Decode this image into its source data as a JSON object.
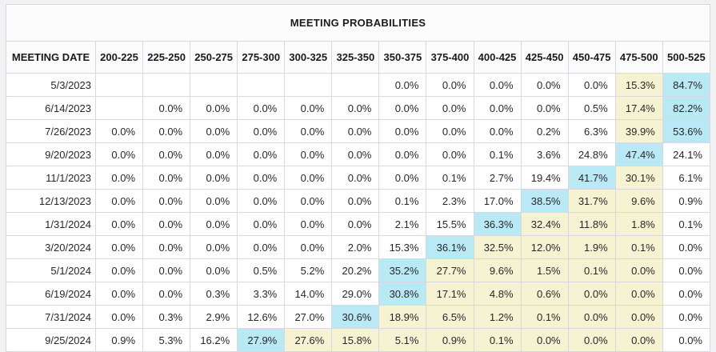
{
  "title": "MEETING PROBABILITIES",
  "colors": {
    "highlight_blue": "#b9e9f5",
    "highlight_yellow": "#f6f3d3",
    "page_background": "#f1f1f2",
    "table_border": "#c1c1c9",
    "cell_border": "#d8d8de",
    "text": "#272727"
  },
  "chart_data": {
    "type": "table",
    "title": "MEETING PROBABILITIES",
    "columns": [
      "MEETING DATE",
      "200-225",
      "225-250",
      "250-275",
      "275-300",
      "300-325",
      "325-350",
      "350-375",
      "375-400",
      "400-425",
      "425-450",
      "450-475",
      "475-500",
      "500-525"
    ],
    "highlight_legend": {
      "B": "highest-probability cell (light blue)",
      "Y": "band between most likely range and 475-500 (pale yellow)"
    },
    "rows": [
      {
        "date": "5/3/2023",
        "values": [
          "",
          "",
          "",
          "",
          "",
          "",
          "0.0%",
          "0.0%",
          "0.0%",
          "0.0%",
          "0.0%",
          "15.3%",
          "84.7%"
        ],
        "highlights": [
          "",
          "",
          "",
          "",
          "",
          "",
          "",
          "",
          "",
          "",
          "",
          "Y",
          "B"
        ]
      },
      {
        "date": "6/14/2023",
        "values": [
          "",
          "0.0%",
          "0.0%",
          "0.0%",
          "0.0%",
          "0.0%",
          "0.0%",
          "0.0%",
          "0.0%",
          "0.0%",
          "0.5%",
          "17.4%",
          "82.2%"
        ],
        "highlights": [
          "",
          "",
          "",
          "",
          "",
          "",
          "",
          "",
          "",
          "",
          "",
          "Y",
          "B"
        ]
      },
      {
        "date": "7/26/2023",
        "values": [
          "0.0%",
          "0.0%",
          "0.0%",
          "0.0%",
          "0.0%",
          "0.0%",
          "0.0%",
          "0.0%",
          "0.0%",
          "0.2%",
          "6.3%",
          "39.9%",
          "53.6%"
        ],
        "highlights": [
          "",
          "",
          "",
          "",
          "",
          "",
          "",
          "",
          "",
          "",
          "",
          "Y",
          "B"
        ]
      },
      {
        "date": "9/20/2023",
        "values": [
          "0.0%",
          "0.0%",
          "0.0%",
          "0.0%",
          "0.0%",
          "0.0%",
          "0.0%",
          "0.0%",
          "0.1%",
          "3.6%",
          "24.8%",
          "47.4%",
          "24.1%"
        ],
        "highlights": [
          "",
          "",
          "",
          "",
          "",
          "",
          "",
          "",
          "",
          "",
          "",
          "B",
          ""
        ]
      },
      {
        "date": "11/1/2023",
        "values": [
          "0.0%",
          "0.0%",
          "0.0%",
          "0.0%",
          "0.0%",
          "0.0%",
          "0.0%",
          "0.1%",
          "2.7%",
          "19.4%",
          "41.7%",
          "30.1%",
          "6.1%"
        ],
        "highlights": [
          "",
          "",
          "",
          "",
          "",
          "",
          "",
          "",
          "",
          "",
          "B",
          "Y",
          ""
        ]
      },
      {
        "date": "12/13/2023",
        "values": [
          "0.0%",
          "0.0%",
          "0.0%",
          "0.0%",
          "0.0%",
          "0.0%",
          "0.1%",
          "2.3%",
          "17.0%",
          "38.5%",
          "31.7%",
          "9.6%",
          "0.9%"
        ],
        "highlights": [
          "",
          "",
          "",
          "",
          "",
          "",
          "",
          "",
          "",
          "B",
          "Y",
          "Y",
          ""
        ]
      },
      {
        "date": "1/31/2024",
        "values": [
          "0.0%",
          "0.0%",
          "0.0%",
          "0.0%",
          "0.0%",
          "0.0%",
          "2.1%",
          "15.5%",
          "36.3%",
          "32.4%",
          "11.8%",
          "1.8%",
          "0.1%"
        ],
        "highlights": [
          "",
          "",
          "",
          "",
          "",
          "",
          "",
          "",
          "B",
          "Y",
          "Y",
          "Y",
          ""
        ]
      },
      {
        "date": "3/20/2024",
        "values": [
          "0.0%",
          "0.0%",
          "0.0%",
          "0.0%",
          "0.0%",
          "2.0%",
          "15.3%",
          "36.1%",
          "32.5%",
          "12.0%",
          "1.9%",
          "0.1%",
          "0.0%"
        ],
        "highlights": [
          "",
          "",
          "",
          "",
          "",
          "",
          "",
          "B",
          "Y",
          "Y",
          "Y",
          "Y",
          ""
        ]
      },
      {
        "date": "5/1/2024",
        "values": [
          "0.0%",
          "0.0%",
          "0.0%",
          "0.5%",
          "5.2%",
          "20.2%",
          "35.2%",
          "27.7%",
          "9.6%",
          "1.5%",
          "0.1%",
          "0.0%",
          "0.0%"
        ],
        "highlights": [
          "",
          "",
          "",
          "",
          "",
          "",
          "B",
          "Y",
          "Y",
          "Y",
          "Y",
          "Y",
          ""
        ]
      },
      {
        "date": "6/19/2024",
        "values": [
          "0.0%",
          "0.0%",
          "0.3%",
          "3.3%",
          "14.0%",
          "29.0%",
          "30.8%",
          "17.1%",
          "4.8%",
          "0.6%",
          "0.0%",
          "0.0%",
          "0.0%"
        ],
        "highlights": [
          "",
          "",
          "",
          "",
          "",
          "",
          "B",
          "Y",
          "Y",
          "Y",
          "Y",
          "Y",
          ""
        ]
      },
      {
        "date": "7/31/2024",
        "values": [
          "0.0%",
          "0.3%",
          "2.9%",
          "12.6%",
          "27.0%",
          "30.6%",
          "18.9%",
          "6.5%",
          "1.2%",
          "0.1%",
          "0.0%",
          "0.0%",
          "0.0%"
        ],
        "highlights": [
          "",
          "",
          "",
          "",
          "",
          "B",
          "Y",
          "Y",
          "Y",
          "Y",
          "Y",
          "Y",
          ""
        ]
      },
      {
        "date": "9/25/2024",
        "values": [
          "0.9%",
          "5.3%",
          "16.2%",
          "27.9%",
          "27.6%",
          "15.8%",
          "5.1%",
          "0.9%",
          "0.1%",
          "0.0%",
          "0.0%",
          "0.0%",
          "0.0%"
        ],
        "highlights": [
          "",
          "",
          "",
          "B",
          "Y",
          "Y",
          "Y",
          "Y",
          "Y",
          "Y",
          "Y",
          "Y",
          ""
        ]
      }
    ]
  }
}
